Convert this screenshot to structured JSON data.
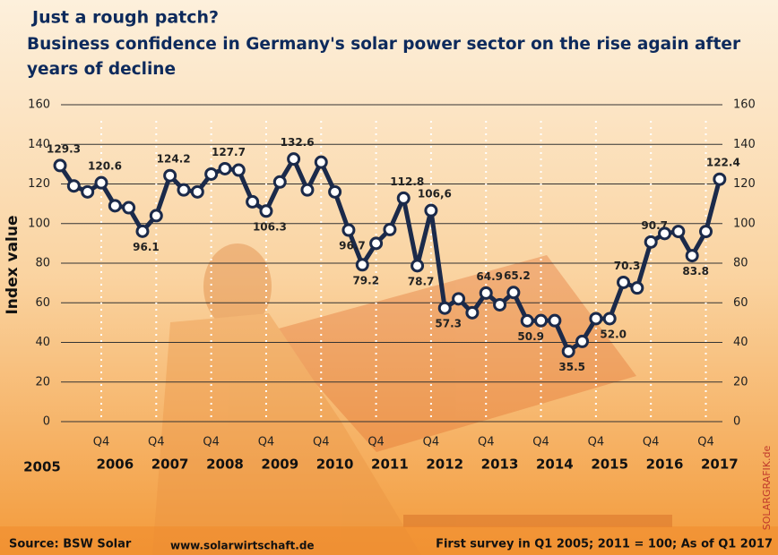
{
  "chart_data": {
    "type": "line",
    "title": "Just a rough patch?",
    "subtitle": "Business confidence in Germany's solar power sector on the rise again after years of decline",
    "y_label": "Index value",
    "categories": [
      null,
      null,
      null,
      "Q4",
      null,
      null,
      null,
      "Q4",
      null,
      null,
      null,
      "Q4",
      null,
      null,
      null,
      "Q4",
      null,
      null,
      null,
      "Q4",
      null,
      null,
      null,
      "Q4",
      null,
      null,
      null,
      "Q4",
      null,
      null,
      null,
      "Q4",
      null,
      null,
      null,
      "Q4",
      null,
      null,
      null,
      "Q4",
      null,
      null,
      null,
      "Q4",
      null,
      null,
      null,
      "Q4",
      null
    ],
    "years": [
      "2005",
      "2006",
      "2007",
      "2008",
      "2009",
      "2010",
      "2011",
      "2012",
      "2013",
      "2014",
      "2015",
      "2016",
      "2017"
    ],
    "series": [
      {
        "name": "Index value",
        "color": "#1b2a4a",
        "values": [
          129.3,
          119,
          116,
          120.6,
          109,
          108,
          96.1,
          104,
          124.2,
          117,
          116,
          125,
          127.7,
          127,
          111,
          106.3,
          121,
          132.6,
          117,
          131,
          116,
          96.7,
          79.2,
          90,
          97,
          112.8,
          78.7,
          106.6,
          57.3,
          62,
          55,
          64.9,
          59,
          65.2,
          50.9,
          51,
          51,
          35.5,
          40.5,
          52,
          52.0,
          70.3,
          67.5,
          90.7,
          95,
          96,
          83.8,
          96,
          122.4
        ],
        "value_labels": [
          "129.3",
          null,
          null,
          "120.6",
          null,
          null,
          "96.1",
          null,
          "124.2",
          null,
          null,
          null,
          "127.7",
          null,
          null,
          "106.3",
          null,
          "132.6",
          null,
          null,
          null,
          "96.7",
          "79.2",
          null,
          null,
          "112.8",
          "78.7",
          "106,6",
          "57.3",
          null,
          null,
          "64.9",
          null,
          "65.2",
          "50.9",
          null,
          null,
          "35.5",
          null,
          null,
          "52.0",
          "70.3",
          null,
          "90.7",
          null,
          null,
          "83.8",
          null,
          "122.4"
        ]
      }
    ],
    "ylim": [
      0,
      160
    ],
    "yticks": [
      0,
      20,
      40,
      60,
      80,
      100,
      120,
      140,
      160
    ],
    "grid": true,
    "source": "Source: BSW Solar",
    "website": "www.solarwirtschaft.de",
    "note": "First survey in Q1 2005; 2011 = 100; As of Q1 2017",
    "credit": "SOLARGRAFIK.de"
  }
}
